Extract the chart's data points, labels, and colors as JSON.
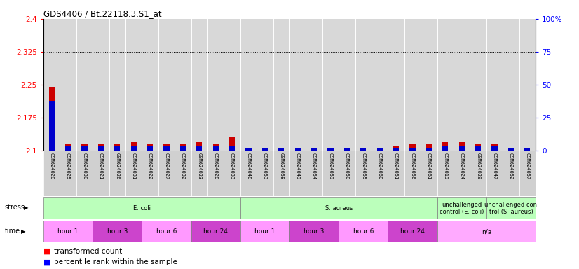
{
  "title": "GDS4406 / Bt.22118.3.S1_at",
  "samples": [
    "GSM624020",
    "GSM624025",
    "GSM624030",
    "GSM624021",
    "GSM624026",
    "GSM624031",
    "GSM624022",
    "GSM624027",
    "GSM624032",
    "GSM624023",
    "GSM624028",
    "GSM624033",
    "GSM624048",
    "GSM624053",
    "GSM624058",
    "GSM624049",
    "GSM624054",
    "GSM624059",
    "GSM624050",
    "GSM624055",
    "GSM624060",
    "GSM624051",
    "GSM624056",
    "GSM624061",
    "GSM624019",
    "GSM624024",
    "GSM624029",
    "GSM624047",
    "GSM624052",
    "GSM624057"
  ],
  "red_values": [
    2.245,
    2.115,
    2.115,
    2.115,
    2.115,
    2.12,
    2.115,
    2.115,
    2.115,
    2.12,
    2.115,
    2.13,
    2.1,
    2.1,
    2.1,
    2.1,
    2.1,
    2.1,
    2.1,
    2.1,
    2.1,
    2.11,
    2.115,
    2.115,
    2.12,
    2.12,
    2.115,
    2.115,
    2.1,
    2.1
  ],
  "blue_values": [
    38,
    4,
    3,
    3,
    3,
    3,
    4,
    3,
    3,
    3,
    3,
    4,
    2,
    2,
    2,
    2,
    2,
    2,
    2,
    2,
    2,
    2,
    2,
    2,
    3,
    3,
    3,
    3,
    2,
    2
  ],
  "ylim_left": [
    2.1,
    2.4
  ],
  "ylim_right": [
    0,
    100
  ],
  "yticks_left": [
    2.1,
    2.175,
    2.25,
    2.325,
    2.4
  ],
  "ytick_labels_left": [
    "2.1",
    "2.175",
    "2.25",
    "2.325",
    "2.4"
  ],
  "yticks_right": [
    0,
    25,
    50,
    75,
    100
  ],
  "ytick_labels_right": [
    "0",
    "25",
    "50",
    "75",
    "100%"
  ],
  "dotted_lines": [
    2.175,
    2.25,
    2.325
  ],
  "stress_groups": [
    {
      "label": "E. coli",
      "start": 0,
      "end": 12,
      "color": "#bbffbb"
    },
    {
      "label": "S. aureus",
      "start": 12,
      "end": 24,
      "color": "#bbffbb"
    },
    {
      "label": "unchallenged\ncontrol (E. coli)",
      "start": 24,
      "end": 27,
      "color": "#bbffbb"
    },
    {
      "label": "unchallenged con\ntrol (S. aureus)",
      "start": 27,
      "end": 30,
      "color": "#bbffbb"
    }
  ],
  "time_groups": [
    {
      "label": "hour 1",
      "start": 0,
      "end": 3,
      "color": "#ff99ff"
    },
    {
      "label": "hour 3",
      "start": 3,
      "end": 6,
      "color": "#cc44cc"
    },
    {
      "label": "hour 6",
      "start": 6,
      "end": 9,
      "color": "#ff99ff"
    },
    {
      "label": "hour 24",
      "start": 9,
      "end": 12,
      "color": "#cc44cc"
    },
    {
      "label": "hour 1",
      "start": 12,
      "end": 15,
      "color": "#ff99ff"
    },
    {
      "label": "hour 3",
      "start": 15,
      "end": 18,
      "color": "#cc44cc"
    },
    {
      "label": "hour 6",
      "start": 18,
      "end": 21,
      "color": "#ff99ff"
    },
    {
      "label": "hour 24",
      "start": 21,
      "end": 24,
      "color": "#cc44cc"
    },
    {
      "label": "n/a",
      "start": 24,
      "end": 30,
      "color": "#ffaaff"
    }
  ],
  "legend_red": "transformed count",
  "legend_blue": "percentile rank within the sample",
  "plot_bg": "#d8d8d8",
  "bar_base": 2.1,
  "fig_bg": "#ffffff"
}
